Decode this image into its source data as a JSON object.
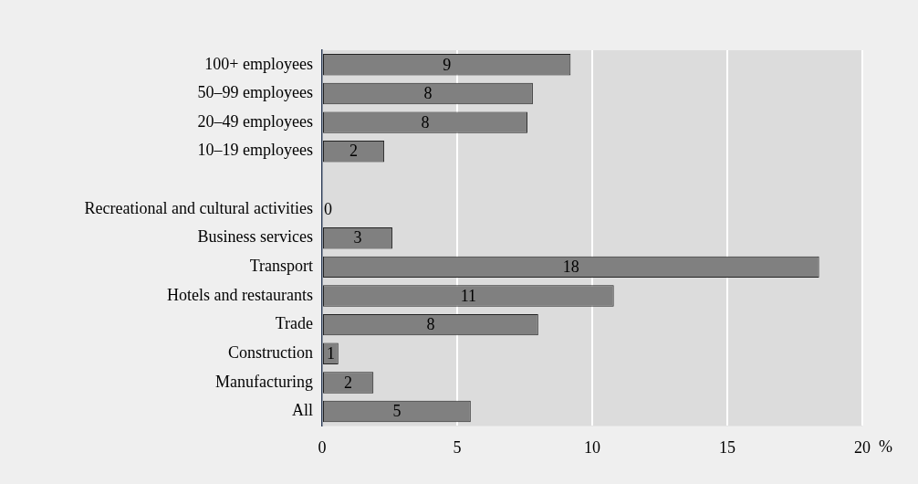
{
  "chart_data": {
    "type": "bar",
    "orientation": "horizontal",
    "xlabel": "%",
    "categories": [
      "100+ employees",
      "50–99 employees",
      "20–49 employees",
      "10–19 employees",
      null,
      "Recreational and cultural activities",
      "Business services",
      "Transport",
      "Hotels and restaurants",
      "Trade",
      "Construction",
      "Manufacturing",
      "All"
    ],
    "values": [
      9.2,
      7.8,
      7.6,
      2.3,
      null,
      0,
      2.6,
      18.4,
      10.8,
      8.0,
      0.6,
      1.9,
      5.5
    ],
    "value_labels": [
      "9",
      "8",
      "8",
      "2",
      null,
      "0",
      "3",
      "18",
      "11",
      "8",
      "1",
      "2",
      "5"
    ],
    "color": "#808080",
    "xlim": [
      0,
      20
    ],
    "xticks": [
      0,
      5,
      10,
      15,
      20
    ],
    "grid": "x",
    "legend": false
  }
}
